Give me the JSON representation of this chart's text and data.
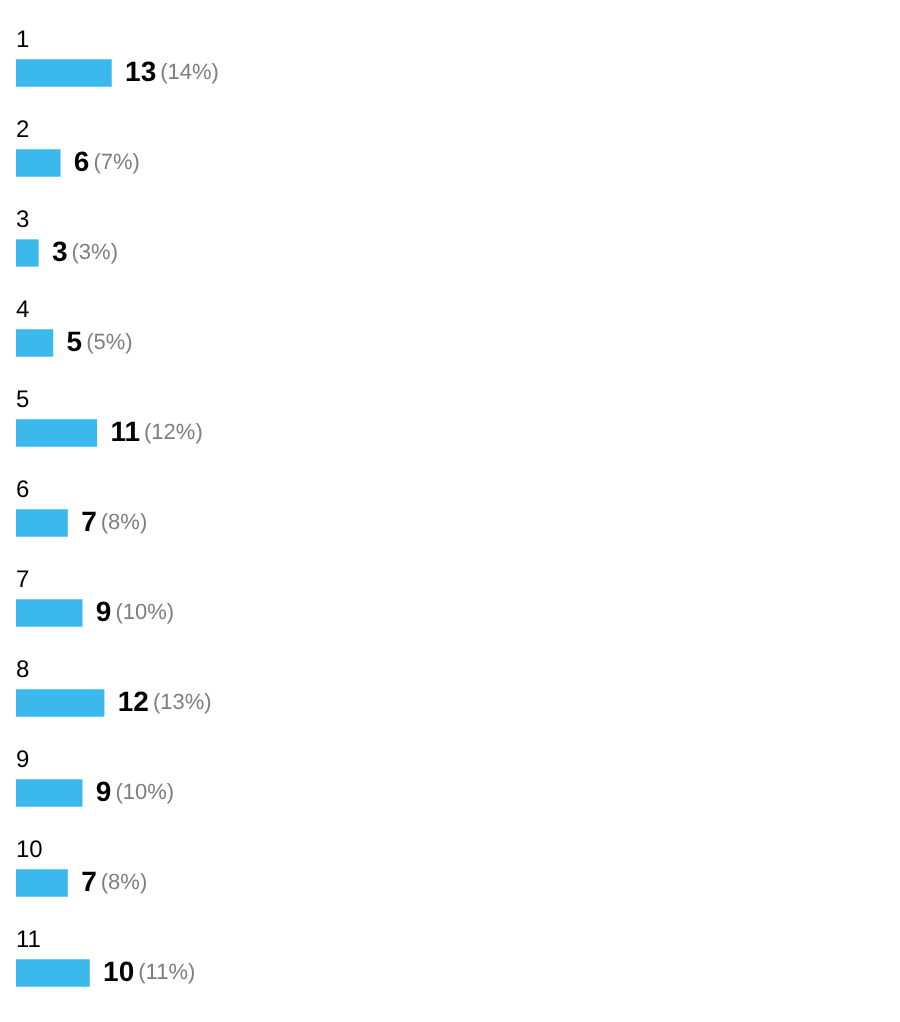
{
  "chart_data": {
    "type": "bar",
    "orientation": "horizontal",
    "categories": [
      "1",
      "2",
      "3",
      "4",
      "5",
      "6",
      "7",
      "8",
      "9",
      "10",
      "11"
    ],
    "values": [
      13,
      6,
      3,
      5,
      11,
      7,
      9,
      12,
      9,
      7,
      10
    ],
    "color": "#3cb9ec",
    "data_labels": true,
    "legend": false,
    "annotations": [
      {
        "text": "(14%)",
        "x": 13,
        "y": "1"
      },
      {
        "text": "(7%)",
        "x": 6,
        "y": "2"
      },
      {
        "text": "(3%)",
        "x": 3,
        "y": "3"
      },
      {
        "text": "(5%)",
        "x": 5,
        "y": "4"
      },
      {
        "text": "(12%)",
        "x": 11,
        "y": "5"
      },
      {
        "text": "(8%)",
        "x": 7,
        "y": "6"
      },
      {
        "text": "(10%)",
        "x": 9,
        "y": "7"
      },
      {
        "text": "(13%)",
        "x": 12,
        "y": "8"
      },
      {
        "text": "(10%)",
        "x": 9,
        "y": "9"
      },
      {
        "text": "(8%)",
        "x": 7,
        "y": "10"
      },
      {
        "text": "(11%)",
        "x": 10,
        "y": "11"
      }
    ]
  }
}
